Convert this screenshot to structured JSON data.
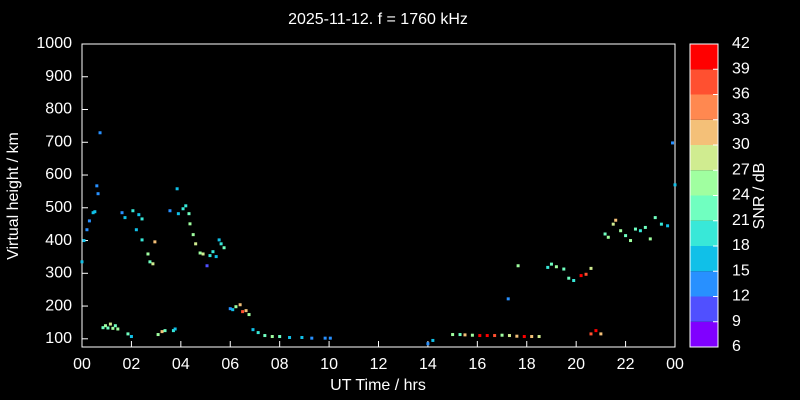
{
  "chart_data": {
    "type": "scatter",
    "title": "2025-11-12. f = 1760 kHz",
    "x_label": "UT Time / hrs",
    "y_label": "Virtual height / km",
    "xlim": [
      0,
      24
    ],
    "ylim": [
      75,
      1000
    ],
    "xticks": [
      {
        "value": 0,
        "label": "00"
      },
      {
        "value": 2,
        "label": "02"
      },
      {
        "value": 4,
        "label": "04"
      },
      {
        "value": 6,
        "label": "06"
      },
      {
        "value": 8,
        "label": "08"
      },
      10,
      12,
      14,
      16,
      18,
      20,
      22,
      {
        "value": 24,
        "label": "00"
      }
    ],
    "yticks": [
      100,
      200,
      300,
      400,
      500,
      600,
      700,
      800,
      900,
      1000
    ],
    "colorbar": {
      "label": "SNR / dB",
      "lim": [
        6,
        42
      ],
      "ticks": [
        6,
        9,
        12,
        15,
        18,
        21,
        24,
        27,
        30,
        33,
        36,
        39,
        42
      ],
      "colors": [
        "#8000ff",
        "#5050ff",
        "#2890ff",
        "#10c0e8",
        "#38e8d8",
        "#70ffc0",
        "#a0ffa0",
        "#d0ec90",
        "#f4c078",
        "#ff8850",
        "#ff5030",
        "#ff0000"
      ]
    },
    "series": [
      {
        "name": "SNR",
        "x": [
          0.0,
          0.08,
          0.2,
          0.3,
          0.45,
          0.52,
          0.6,
          0.65,
          0.73,
          0.85,
          0.95,
          1.05,
          1.15,
          1.25,
          1.35,
          1.45,
          1.62,
          1.74,
          1.86,
          2.0,
          2.06,
          2.2,
          2.3,
          2.43,
          2.43,
          2.67,
          2.75,
          2.87,
          2.95,
          3.08,
          3.24,
          3.36,
          3.56,
          3.7,
          3.77,
          3.85,
          3.9,
          4.09,
          4.2,
          4.33,
          4.37,
          4.5,
          4.6,
          4.78,
          4.9,
          5.06,
          5.18,
          5.3,
          5.43,
          5.55,
          5.63,
          5.75,
          6.0,
          6.1,
          6.23,
          6.4,
          6.5,
          6.64,
          6.76,
          6.92,
          7.13,
          7.4,
          7.7,
          8.0,
          8.4,
          8.9,
          9.3,
          9.84,
          10.05,
          14.0,
          14.2,
          15.0,
          15.3,
          15.5,
          15.8,
          16.1,
          16.4,
          16.7,
          17.0,
          17.3,
          17.6,
          17.9,
          18.2,
          18.5,
          17.25,
          17.65,
          18.85,
          19.0,
          19.2,
          19.5,
          19.7,
          19.9,
          20.2,
          20.4,
          20.6,
          20.6,
          20.8,
          21.0,
          21.17,
          21.3,
          21.5,
          21.6,
          21.8,
          22.0,
          22.2,
          22.4,
          22.6,
          22.8,
          23.0,
          23.2,
          23.45,
          23.7,
          23.9,
          24.0
        ],
        "values": [
          335,
          400,
          433,
          460,
          485,
          488,
          567,
          543,
          729,
          134,
          140,
          133,
          145,
          132,
          140,
          130,
          485,
          470,
          115,
          107,
          491,
          433,
          479,
          466,
          402,
          359,
          335,
          329,
          396,
          113,
          122,
          125,
          491,
          125,
          130,
          558,
          482,
          497,
          506,
          482,
          451,
          418,
          390,
          362,
          359,
          323,
          354,
          366,
          351,
          402,
          390,
          378,
          192,
          189,
          198,
          204,
          183,
          186,
          174,
          128,
          119,
          110,
          107,
          107,
          104,
          104,
          102,
          102,
          102,
          85,
          95,
          113,
          113,
          112,
          111,
          110,
          110,
          110,
          111,
          110,
          108,
          107,
          107,
          107,
          222,
          323,
          318,
          328,
          320,
          313,
          285,
          278,
          293,
          297,
          315,
          115,
          125,
          115,
          420,
          410,
          450,
          462,
          430,
          415,
          400,
          435,
          430,
          440,
          405,
          470,
          450,
          445,
          698,
          570
        ],
        "snr": [
          15,
          15,
          12,
          12,
          15,
          15,
          12,
          12,
          12,
          21,
          24,
          21,
          27,
          24,
          21,
          24,
          12,
          15,
          21,
          15,
          18,
          15,
          15,
          18,
          18,
          24,
          21,
          27,
          30,
          24,
          30,
          21,
          12,
          18,
          15,
          15,
          15,
          18,
          18,
          21,
          24,
          24,
          27,
          24,
          27,
          9,
          18,
          18,
          15,
          15,
          18,
          21,
          12,
          15,
          24,
          30,
          36,
          30,
          24,
          15,
          18,
          21,
          24,
          21,
          15,
          15,
          12,
          12,
          12,
          12,
          15,
          24,
          21,
          30,
          24,
          39,
          39,
          36,
          24,
          27,
          30,
          39,
          30,
          27,
          12,
          24,
          18,
          21,
          24,
          21,
          21,
          18,
          39,
          36,
          27,
          36,
          39,
          30,
          21,
          24,
          27,
          30,
          24,
          21,
          24,
          21,
          18,
          21,
          24,
          21,
          18,
          15,
          12,
          15
        ]
      }
    ]
  }
}
